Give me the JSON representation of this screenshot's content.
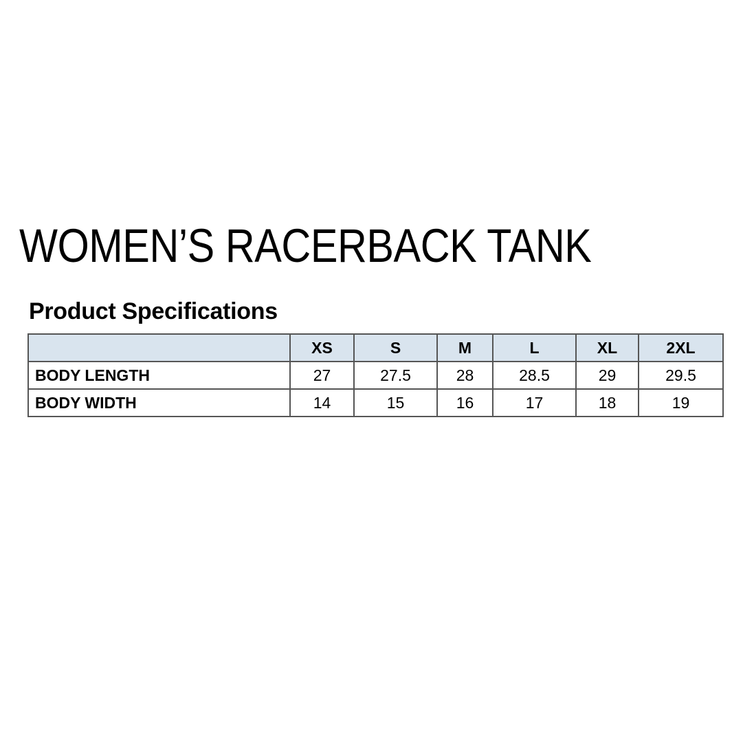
{
  "title": "WOMEN’S RACERBACK TANK",
  "subtitle": "Product Specifications",
  "table": {
    "header_bg": "#d9e4ee",
    "columns": [
      "",
      "XS",
      "S",
      "M",
      "L",
      "XL",
      "2XL"
    ],
    "rows": [
      {
        "label": "BODY LENGTH",
        "values": [
          "27",
          "27.5",
          "28",
          "28.5",
          "29",
          "29.5"
        ]
      },
      {
        "label": "BODY WIDTH",
        "values": [
          "14",
          "15",
          "16",
          "17",
          "18",
          "19"
        ]
      }
    ]
  }
}
